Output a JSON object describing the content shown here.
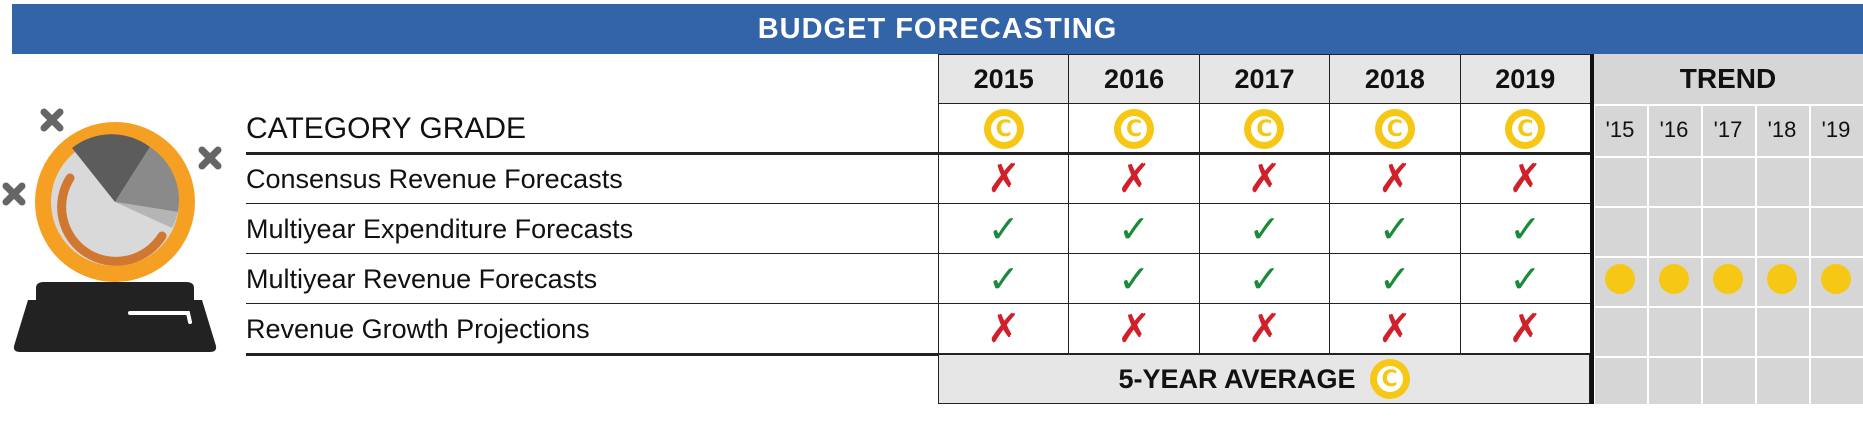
{
  "title": "BUDGET FORECASTING",
  "years": [
    "2015",
    "2016",
    "2017",
    "2018",
    "2019"
  ],
  "category_grade_label": "CATEGORY GRADE",
  "category_grades": [
    "C",
    "C",
    "C",
    "C",
    "C"
  ],
  "rows": [
    {
      "label": "Consensus Revenue Forecasts",
      "marks": [
        "✗",
        "✗",
        "✗",
        "✗",
        "✗"
      ],
      "kinds": [
        "x",
        "x",
        "x",
        "x",
        "x"
      ]
    },
    {
      "label": "Multiyear Expenditure Forecasts",
      "marks": [
        "✓",
        "✓",
        "✓",
        "✓",
        "✓"
      ],
      "kinds": [
        "check",
        "check",
        "check",
        "check",
        "check"
      ]
    },
    {
      "label": "Multiyear Revenue Forecasts",
      "marks": [
        "✓",
        "✓",
        "✓",
        "✓",
        "✓"
      ],
      "kinds": [
        "check",
        "check",
        "check",
        "check",
        "check"
      ]
    },
    {
      "label": "Revenue Growth Projections",
      "marks": [
        "✗",
        "✗",
        "✗",
        "✗",
        "✗"
      ],
      "kinds": [
        "x",
        "x",
        "x",
        "x",
        "x"
      ]
    }
  ],
  "trend": {
    "title": "TREND",
    "year_labels": [
      "'15",
      "'16",
      "'17",
      "'18",
      "'19"
    ],
    "dot_row_index": 2
  },
  "five_year_average": {
    "label": "5-YEAR AVERAGE",
    "grade": "C"
  },
  "colors": {
    "banner": "#3464a8",
    "grade": "#f7c716",
    "x": "#d0202a",
    "check": "#1b8a3a",
    "trend_bg": "#d6d6d6"
  },
  "icons": {
    "x_icon": "cross-mark",
    "check_icon": "check-mark",
    "illustration": "crystal-ball-icon"
  }
}
